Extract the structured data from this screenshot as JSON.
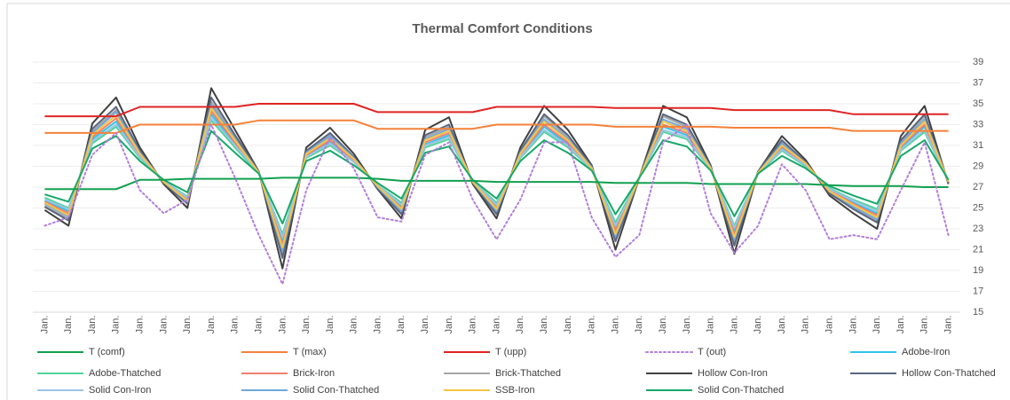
{
  "chart_data": {
    "type": "line",
    "title": "Thermal Comfort Conditions",
    "categories": [
      "Jan.",
      "Jan.",
      "Jan.",
      "Jan.",
      "Jan.",
      "Jan.",
      "Jan.",
      "Jan.",
      "Jan.",
      "Jan.",
      "Jan.",
      "Jan.",
      "Jan.",
      "Jan.",
      "Jan.",
      "Jan.",
      "Jan.",
      "Jan.",
      "Jan.",
      "Jan.",
      "Jan.",
      "Jan.",
      "Jan.",
      "Jan.",
      "Jan.",
      "Jan.",
      "Jan.",
      "Jan.",
      "Jan.",
      "Jan.",
      "Jan.",
      "Jan.",
      "Jan.",
      "Jan.",
      "Jan.",
      "Jan.",
      "Jan.",
      "Jan.",
      "Jan."
    ],
    "ylim": [
      15,
      39
    ],
    "yticks": [
      15,
      17,
      19,
      21,
      23,
      25,
      27,
      29,
      31,
      33,
      35,
      37,
      39
    ],
    "y_axis_side": "right",
    "grid": true,
    "legend_position": "bottom",
    "series": [
      {
        "name": "Adobe-Iron",
        "color": "#2fc4ea",
        "values": [
          25.7,
          24.7,
          31.6,
          33.3,
          30.0,
          27.5,
          25.9,
          34.0,
          31.1,
          28.4,
          21.8,
          30.0,
          31.3,
          29.5,
          27.1,
          25.2,
          31.1,
          32.0,
          27.5,
          25.2,
          30.0,
          32.8,
          31.1,
          28.8,
          23.1,
          27.9,
          32.8,
          32.0,
          28.8,
          22.8,
          28.4,
          30.8,
          29.1,
          26.8,
          25.5,
          24.5,
          30.8,
          32.8,
          27.5
        ]
      },
      {
        "name": "Adobe-Thatched",
        "color": "#4fd49a",
        "values": [
          26.0,
          25.0,
          31.2,
          32.8,
          29.8,
          27.6,
          26.1,
          33.4,
          30.8,
          28.3,
          22.5,
          29.8,
          31.0,
          29.4,
          27.2,
          25.5,
          30.8,
          31.6,
          27.6,
          25.5,
          29.8,
          32.3,
          30.8,
          28.7,
          23.6,
          27.9,
          32.3,
          31.6,
          28.7,
          23.3,
          28.3,
          30.5,
          29.0,
          26.9,
          25.8,
          24.9,
          30.5,
          32.3,
          27.6
        ]
      },
      {
        "name": "Brick-Iron",
        "color": "#f07f6e",
        "values": [
          25.6,
          24.5,
          31.8,
          33.6,
          30.1,
          27.5,
          25.8,
          34.3,
          31.3,
          28.4,
          21.5,
          30.1,
          31.5,
          29.6,
          27.1,
          25.0,
          31.3,
          32.2,
          27.5,
          25.0,
          30.1,
          33.0,
          31.3,
          28.8,
          22.8,
          27.9,
          33.0,
          32.2,
          28.8,
          22.5,
          28.4,
          30.9,
          29.2,
          26.7,
          25.4,
          24.3,
          30.9,
          33.0,
          27.5
        ]
      },
      {
        "name": "Brick-Thatched",
        "color": "#a6a6a6",
        "values": [
          25.2,
          24.0,
          32.4,
          34.4,
          30.4,
          27.4,
          25.5,
          35.2,
          31.8,
          28.5,
          20.5,
          30.4,
          32.0,
          29.8,
          27.0,
          24.6,
          31.8,
          32.8,
          27.4,
          24.6,
          30.4,
          33.8,
          31.8,
          28.9,
          22.0,
          27.9,
          33.8,
          32.8,
          28.9,
          21.7,
          28.5,
          31.3,
          29.4,
          26.5,
          25.0,
          23.7,
          31.3,
          33.8,
          27.4
        ]
      },
      {
        "name": "Hollow Con-Iron",
        "color": "#404040",
        "values": [
          24.8,
          23.3,
          33.1,
          35.6,
          30.8,
          27.3,
          25.0,
          36.5,
          32.5,
          28.5,
          19.2,
          30.8,
          32.7,
          30.2,
          26.8,
          24.0,
          32.5,
          33.7,
          27.3,
          24.0,
          30.8,
          34.8,
          32.5,
          29.1,
          21.0,
          27.9,
          34.8,
          33.7,
          29.1,
          20.6,
          28.5,
          31.9,
          29.6,
          26.2,
          24.5,
          23.0,
          31.9,
          34.8,
          27.3
        ]
      },
      {
        "name": "Hollow Con-Thatched",
        "color": "#5b6680",
        "values": [
          25.1,
          23.8,
          32.6,
          34.7,
          30.5,
          27.4,
          25.4,
          35.6,
          32.0,
          28.5,
          20.2,
          30.5,
          32.2,
          29.9,
          26.9,
          24.4,
          32.0,
          33.0,
          27.4,
          24.4,
          30.5,
          34.0,
          32.0,
          29.0,
          21.8,
          27.9,
          34.0,
          33.0,
          29.0,
          21.4,
          28.5,
          31.5,
          29.4,
          26.4,
          24.9,
          23.6,
          31.5,
          34.0,
          27.4
        ]
      },
      {
        "name": "Solid Con-Iron",
        "color": "#9dc3e6",
        "values": [
          25.8,
          24.9,
          31.4,
          33.0,
          29.9,
          27.6,
          26.0,
          33.7,
          31.0,
          28.4,
          22.2,
          29.9,
          31.2,
          29.4,
          27.2,
          25.3,
          31.0,
          31.8,
          27.6,
          25.3,
          29.9,
          32.5,
          31.0,
          28.7,
          23.3,
          27.9,
          32.5,
          31.8,
          28.7,
          23.1,
          28.4,
          30.6,
          29.1,
          26.8,
          25.7,
          24.7,
          30.6,
          32.5,
          27.6
        ]
      },
      {
        "name": "Solid Con-Thatched",
        "color": "#6fa8dc",
        "values": [
          25.4,
          24.2,
          32.2,
          34.2,
          30.3,
          27.5,
          25.6,
          34.9,
          31.6,
          28.4,
          20.9,
          30.3,
          31.9,
          29.8,
          27.0,
          24.7,
          31.6,
          32.6,
          27.5,
          24.7,
          30.3,
          33.5,
          31.6,
          28.9,
          22.3,
          27.9,
          33.5,
          32.6,
          28.9,
          22.0,
          28.4,
          31.2,
          29.3,
          26.6,
          25.1,
          23.9,
          31.2,
          33.5,
          27.5
        ]
      },
      {
        "name": "SSB-Iron",
        "color": "#f6c443",
        "values": [
          25.5,
          24.3,
          32.0,
          33.9,
          30.2,
          27.5,
          25.7,
          34.6,
          31.5,
          28.4,
          21.2,
          30.2,
          31.7,
          29.7,
          27.1,
          24.9,
          31.5,
          32.4,
          27.5,
          24.9,
          30.2,
          33.3,
          31.5,
          28.8,
          22.5,
          27.9,
          33.3,
          32.4,
          28.8,
          22.2,
          28.4,
          31.0,
          29.3,
          26.6,
          25.3,
          24.1,
          31.0,
          33.3,
          27.5
        ]
      },
      {
        "name": "Solid Con-Thatched",
        "color": "#17a86a",
        "values": [
          26.3,
          25.6,
          30.7,
          31.9,
          29.5,
          27.7,
          26.5,
          32.4,
          30.3,
          28.3,
          23.5,
          29.5,
          30.5,
          29.1,
          27.4,
          25.9,
          30.3,
          30.9,
          27.7,
          25.9,
          29.5,
          31.5,
          30.3,
          28.6,
          24.4,
          27.9,
          31.5,
          30.9,
          28.6,
          24.2,
          28.3,
          30.0,
          28.8,
          27.1,
          26.2,
          25.4,
          30.0,
          31.5,
          27.7
        ]
      },
      {
        "name": "T (comf)",
        "color": "#10a050",
        "values": [
          26.8,
          26.8,
          26.8,
          26.8,
          27.7,
          27.7,
          27.8,
          27.8,
          27.8,
          27.8,
          27.9,
          27.9,
          27.9,
          27.9,
          27.8,
          27.6,
          27.6,
          27.6,
          27.6,
          27.5,
          27.5,
          27.5,
          27.5,
          27.5,
          27.4,
          27.4,
          27.4,
          27.4,
          27.3,
          27.3,
          27.3,
          27.3,
          27.3,
          27.2,
          27.1,
          27.1,
          27.1,
          27.0,
          27.0
        ]
      },
      {
        "name": "T (max)",
        "color": "#f4813a",
        "values": [
          32.2,
          32.2,
          32.2,
          32.2,
          33.0,
          33.0,
          33.0,
          33.0,
          33.0,
          33.4,
          33.4,
          33.4,
          33.4,
          33.4,
          32.6,
          32.6,
          32.6,
          32.6,
          32.6,
          33.0,
          33.0,
          33.0,
          33.0,
          33.0,
          32.8,
          32.8,
          32.8,
          32.8,
          32.8,
          32.7,
          32.7,
          32.7,
          32.7,
          32.7,
          32.4,
          32.4,
          32.4,
          32.4,
          32.4
        ]
      },
      {
        "name": "T (upp)",
        "color": "#e02424",
        "values": [
          33.8,
          33.8,
          33.8,
          33.8,
          34.7,
          34.7,
          34.7,
          34.7,
          34.7,
          35.0,
          35.0,
          35.0,
          35.0,
          35.0,
          34.2,
          34.2,
          34.2,
          34.2,
          34.2,
          34.7,
          34.7,
          34.7,
          34.7,
          34.7,
          34.6,
          34.6,
          34.6,
          34.6,
          34.6,
          34.4,
          34.4,
          34.4,
          34.4,
          34.4,
          34.0,
          34.0,
          34.0,
          34.0,
          34.0
        ]
      },
      {
        "name": "T (out)",
        "color": "#b27fd9",
        "line_style": "dotted",
        "values": [
          23.3,
          24.1,
          30.1,
          32.2,
          26.7,
          24.5,
          25.8,
          33.0,
          27.9,
          22.4,
          17.7,
          26.7,
          31.8,
          28.8,
          24.1,
          23.7,
          30.1,
          31.3,
          25.8,
          22.0,
          25.8,
          31.3,
          31.3,
          24.1,
          20.3,
          22.4,
          31.3,
          33.0,
          24.5,
          20.7,
          23.3,
          29.2,
          26.7,
          22.0,
          22.4,
          22.0,
          26.7,
          31.3,
          22.4
        ]
      }
    ],
    "legend_order": [
      10,
      11,
      12,
      13,
      0,
      1,
      2,
      3,
      4,
      5,
      6,
      7,
      8,
      9
    ]
  }
}
